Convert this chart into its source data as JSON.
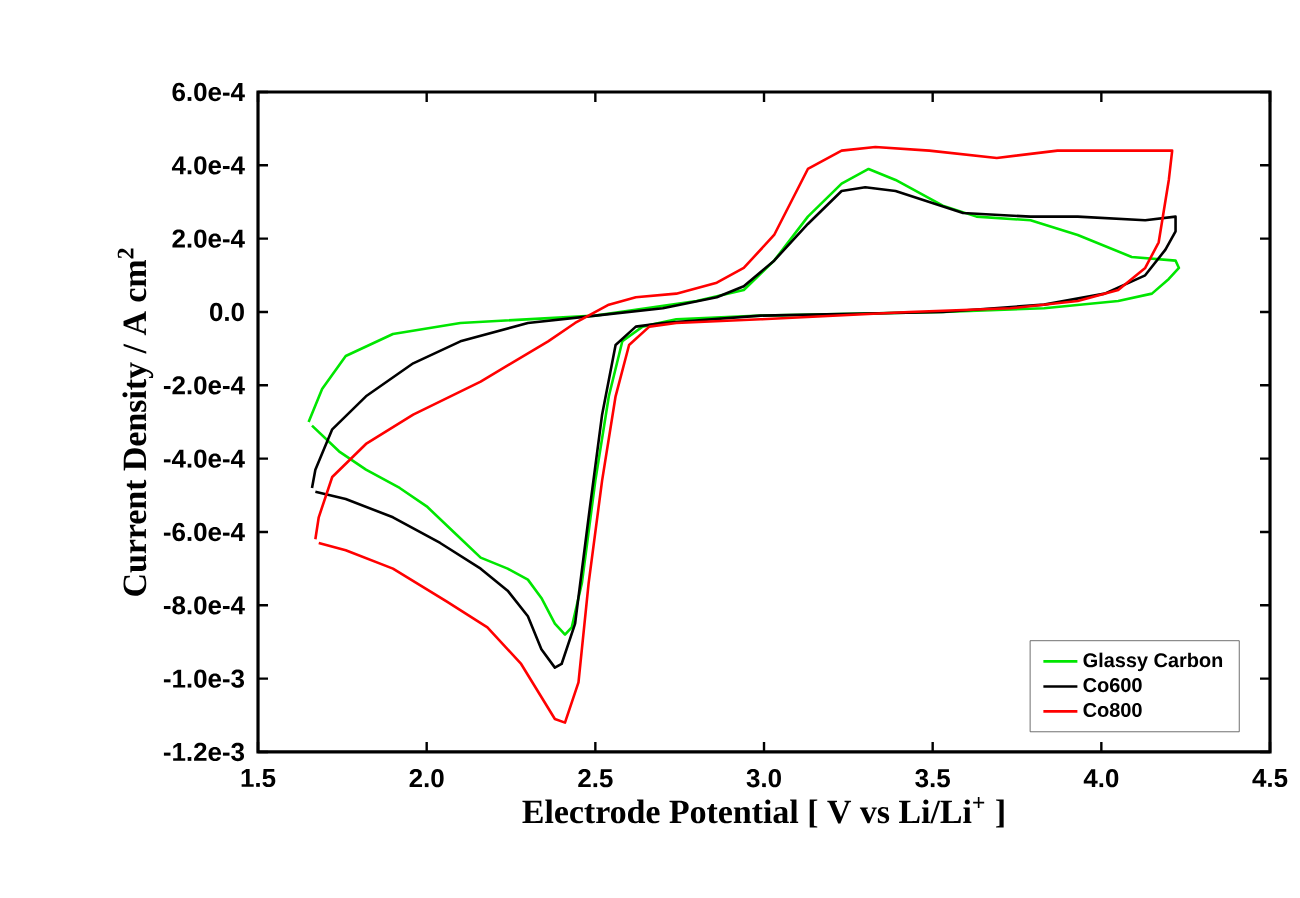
{
  "chart_data": {
    "type": "line",
    "xlabel": "Electrode Potential [ V vs Li/Li$^{+}$ ]",
    "ylabel": "Current Density / A cm$^{2}$",
    "xlim": [
      1.5,
      4.5
    ],
    "ylim": [
      -0.0012,
      0.0006
    ],
    "xticks": [
      1.5,
      {
        "value": 2.0,
        "label": "2.0"
      },
      2.5,
      {
        "value": 3.0,
        "label": "3.0"
      },
      3.5,
      {
        "value": 4.0,
        "label": "4.0"
      },
      4.5
    ],
    "yticks": [
      {
        "value": -0.0012,
        "label": "-1.2e-3"
      },
      {
        "value": -0.001,
        "label": "-1.0e-3"
      },
      {
        "value": -0.0008,
        "label": "-8.0e-4"
      },
      {
        "value": -0.0006,
        "label": "-6.0e-4"
      },
      {
        "value": -0.0004,
        "label": "-4.0e-4"
      },
      {
        "value": -0.0002,
        "label": "-2.0e-4"
      },
      {
        "value": 0,
        "label": "0.0"
      },
      {
        "value": 0.0002,
        "label": "2.0e-4"
      },
      {
        "value": 0.0004,
        "label": "4.0e-4"
      },
      {
        "value": 0.0006,
        "label": "6.0e-4"
      }
    ],
    "grid": false,
    "legend": "bottom right",
    "marker": "none",
    "line_style": "solid",
    "series": [
      {
        "name": "Glassy Carbon",
        "color": "#00e600",
        "x": [
          1.65,
          1.69,
          1.76,
          1.9,
          2.1,
          2.5,
          2.8,
          2.94,
          3.03,
          3.13,
          3.23,
          3.31,
          3.39,
          3.53,
          3.63,
          3.79,
          3.93,
          4.09,
          4.22,
          4.23,
          4.2,
          4.15,
          4.05,
          3.83,
          3.53,
          2.99,
          2.74,
          2.64,
          2.58,
          2.54,
          2.5,
          2.46,
          2.43,
          2.41,
          2.38,
          2.34,
          2.3,
          2.24,
          2.16,
          2.08,
          2.0,
          1.92,
          1.82,
          1.74,
          1.66
        ],
        "values": [
          -0.0003,
          -0.00021,
          -0.00012,
          -6e-05,
          -3e-05,
          -1e-05,
          3e-05,
          6e-05,
          0.00014,
          0.00026,
          0.00035,
          0.00039,
          0.00036,
          0.00029,
          0.00026,
          0.00025,
          0.00021,
          0.00015,
          0.00014,
          0.00012,
          9e-05,
          5e-05,
          3e-05,
          1e-05,
          0.0,
          -1e-05,
          -2e-05,
          -4e-05,
          -8e-05,
          -0.00023,
          -0.00046,
          -0.00074,
          -0.00086,
          -0.00088,
          -0.00085,
          -0.00078,
          -0.00073,
          -0.0007,
          -0.00067,
          -0.0006,
          -0.00053,
          -0.00048,
          -0.00043,
          -0.00038,
          -0.00031
        ]
      },
      {
        "name": "Co600",
        "color": "#000000",
        "x": [
          1.66,
          1.67,
          1.72,
          1.82,
          1.96,
          2.1,
          2.3,
          2.5,
          2.7,
          2.86,
          2.94,
          3.03,
          3.13,
          3.23,
          3.3,
          3.39,
          3.49,
          3.59,
          3.79,
          3.93,
          4.13,
          4.22,
          4.22,
          4.19,
          4.13,
          4.01,
          3.83,
          3.53,
          2.99,
          2.7,
          2.62,
          2.56,
          2.52,
          2.48,
          2.44,
          2.4,
          2.38,
          2.34,
          2.3,
          2.24,
          2.16,
          2.04,
          1.9,
          1.76,
          1.67
        ],
        "values": [
          -0.00048,
          -0.00043,
          -0.00032,
          -0.00023,
          -0.00014,
          -8e-05,
          -3e-05,
          -1e-05,
          1e-05,
          4e-05,
          7e-05,
          0.00014,
          0.00024,
          0.00033,
          0.00034,
          0.00033,
          0.0003,
          0.00027,
          0.00026,
          0.00026,
          0.00025,
          0.00026,
          0.00022,
          0.00017,
          0.0001,
          5e-05,
          2e-05,
          0.0,
          -1e-05,
          -3e-05,
          -4e-05,
          -9e-05,
          -0.00028,
          -0.00056,
          -0.00085,
          -0.00096,
          -0.00097,
          -0.00092,
          -0.00083,
          -0.00076,
          -0.0007,
          -0.00063,
          -0.00056,
          -0.00051,
          -0.00049
        ]
      },
      {
        "name": "Co800",
        "color": "#ff0000",
        "x": [
          1.67,
          1.68,
          1.72,
          1.82,
          1.96,
          2.16,
          2.36,
          2.44,
          2.54,
          2.62,
          2.74,
          2.86,
          2.94,
          3.03,
          3.13,
          3.23,
          3.33,
          3.49,
          3.69,
          3.87,
          4.06,
          4.21,
          4.2,
          4.17,
          4.13,
          4.05,
          3.93,
          3.73,
          3.43,
          2.99,
          2.74,
          2.66,
          2.6,
          2.56,
          2.52,
          2.48,
          2.45,
          2.41,
          2.38,
          2.34,
          2.28,
          2.18,
          2.06,
          1.9,
          1.76,
          1.68
        ],
        "values": [
          -0.00062,
          -0.00056,
          -0.00045,
          -0.00036,
          -0.00028,
          -0.00019,
          -8e-05,
          -3e-05,
          2e-05,
          4e-05,
          5e-05,
          8e-05,
          0.00012,
          0.00021,
          0.00039,
          0.00044,
          0.00045,
          0.00044,
          0.00042,
          0.00044,
          0.00044,
          0.00044,
          0.00036,
          0.00019,
          0.00012,
          6e-05,
          3e-05,
          1e-05,
          0.0,
          -2e-05,
          -3e-05,
          -4e-05,
          -9e-05,
          -0.00023,
          -0.00046,
          -0.00074,
          -0.00101,
          -0.00112,
          -0.00111,
          -0.00105,
          -0.00096,
          -0.00086,
          -0.00079,
          -0.0007,
          -0.00065,
          -0.00063
        ]
      }
    ]
  }
}
